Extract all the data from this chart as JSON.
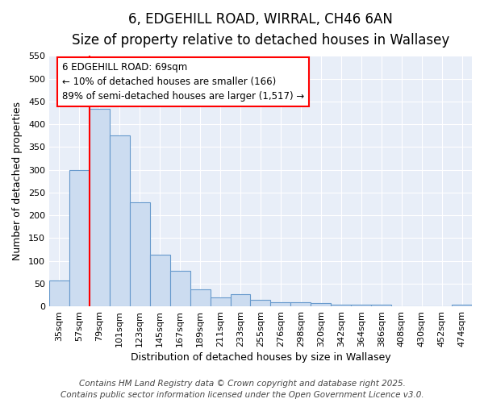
{
  "title1": "6, EDGEHILL ROAD, WIRRAL, CH46 6AN",
  "title2": "Size of property relative to detached houses in Wallasey",
  "xlabel": "Distribution of detached houses by size in Wallasey",
  "ylabel": "Number of detached properties",
  "categories": [
    "35sqm",
    "57sqm",
    "79sqm",
    "101sqm",
    "123sqm",
    "145sqm",
    "167sqm",
    "189sqm",
    "211sqm",
    "233sqm",
    "255sqm",
    "276sqm",
    "298sqm",
    "320sqm",
    "342sqm",
    "364sqm",
    "386sqm",
    "408sqm",
    "430sqm",
    "452sqm",
    "474sqm"
  ],
  "values": [
    57,
    300,
    433,
    375,
    228,
    113,
    78,
    38,
    20,
    26,
    14,
    9,
    9,
    8,
    4,
    4,
    4,
    0,
    0,
    0,
    3
  ],
  "bar_color": "#ccdcf0",
  "bar_edge_color": "#6699cc",
  "red_line_x": 1.5,
  "ylim": [
    0,
    550
  ],
  "yticks": [
    0,
    50,
    100,
    150,
    200,
    250,
    300,
    350,
    400,
    450,
    500,
    550
  ],
  "annotation_line1": "6 EDGEHILL ROAD: 69sqm",
  "annotation_line2": "← 10% of detached houses are smaller (166)",
  "annotation_line3": "89% of semi-detached houses are larger (1,517) →",
  "footnote1": "Contains HM Land Registry data © Crown copyright and database right 2025.",
  "footnote2": "Contains public sector information licensed under the Open Government Licence v3.0.",
  "fig_bg_color": "#ffffff",
  "plot_bg_color": "#e8eef8",
  "grid_color": "#ffffff",
  "title_fontsize": 12,
  "subtitle_fontsize": 10,
  "axis_label_fontsize": 9,
  "tick_fontsize": 8,
  "annotation_fontsize": 8.5,
  "footnote_fontsize": 7.5
}
